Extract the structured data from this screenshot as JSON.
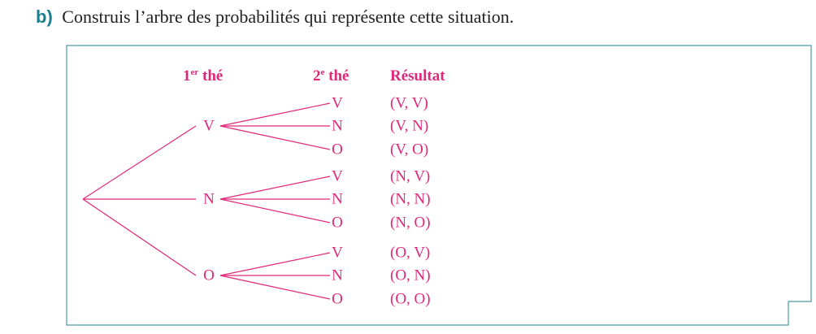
{
  "question": {
    "label": "b)",
    "text": "Construis l’arbre des probabilités qui représente cette situation."
  },
  "headers": {
    "first_num": "1",
    "first_sup": "er",
    "first_word": " thé",
    "second_num": "2",
    "second_sup": "e",
    "second_word": " thé",
    "result": "Résultat"
  },
  "colors": {
    "accent": "#e0287a",
    "frame": "#4f9aa3",
    "label": "#1b7f8c"
  },
  "tree": [
    {
      "label": "V",
      "children": [
        {
          "label": "V",
          "result": "(V, V)"
        },
        {
          "label": "N",
          "result": "(V, N)"
        },
        {
          "label": "O",
          "result": "(V, O)"
        }
      ]
    },
    {
      "label": "N",
      "children": [
        {
          "label": "V",
          "result": "(N, V)"
        },
        {
          "label": "N",
          "result": "(N, N)"
        },
        {
          "label": "O",
          "result": "(N, O)"
        }
      ]
    },
    {
      "label": "O",
      "children": [
        {
          "label": "V",
          "result": "(O, V)"
        },
        {
          "label": "N",
          "result": "(O, N)"
        },
        {
          "label": "O",
          "result": "(O, O)"
        }
      ]
    }
  ]
}
